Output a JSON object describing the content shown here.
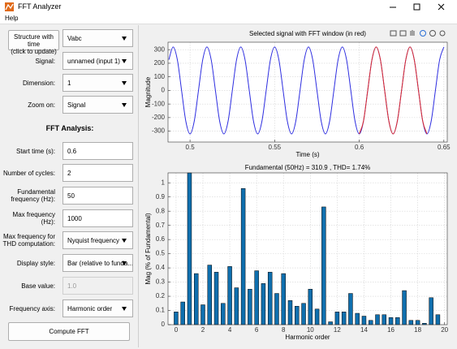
{
  "window": {
    "title": "FFT Analyzer",
    "menu": [
      "Help"
    ]
  },
  "panel": {
    "source_button": [
      "Structure with time",
      "(click to update)"
    ],
    "source_select": "Vabc",
    "fields": [
      {
        "label": "Signal:",
        "value": "unnamed (input 1)",
        "kind": "select"
      },
      {
        "label": "Dimension:",
        "value": "1",
        "kind": "select"
      },
      {
        "label": "Zoom on:",
        "value": "Signal",
        "kind": "select"
      },
      {
        "label": "Start time (s):",
        "value": "0.6",
        "kind": "edit"
      },
      {
        "label": "Number of cycles:",
        "value": "2",
        "kind": "edit"
      },
      {
        "label": "Fundamental frequency (Hz):",
        "value": "50",
        "kind": "edit"
      },
      {
        "label": "Max frequency (Hz):",
        "value": "1000",
        "kind": "edit"
      },
      {
        "label": "Max frequency for THD computation:",
        "value": "Nyquist frequency",
        "kind": "select"
      },
      {
        "label": "Display style:",
        "value": "Bar (relative to funda...",
        "kind": "select"
      },
      {
        "label": "Base value:",
        "value": "1.0",
        "kind": "edit",
        "enabled": false
      },
      {
        "label": "Frequency axis:",
        "value": "Harmonic order",
        "kind": "select"
      }
    ],
    "section_title": "FFT Analysis:",
    "compute_button": "Compute FFT"
  },
  "chart_data": [
    {
      "type": "line",
      "title": "Selected signal with FFT window (in red)",
      "xlabel": "Time (s)",
      "ylabel": "Magnitude",
      "xlim": [
        0.487,
        0.652
      ],
      "ylim": [
        -380,
        355
      ],
      "xticks": [
        0.5,
        0.55,
        0.6,
        0.65
      ],
      "yticks": [
        -300,
        -200,
        -100,
        0,
        100,
        200,
        300
      ],
      "grid": true,
      "series": [
        {
          "color": "#2d2de0",
          "x": [
            0.4875,
            0.49,
            0.4925,
            0.495,
            0.4975,
            0.5,
            0.5025,
            0.505,
            0.5075,
            0.51,
            0.5125,
            0.515,
            0.5175,
            0.52,
            0.5225,
            0.525,
            0.5275,
            0.53,
            0.5325,
            0.535,
            0.5375,
            0.54,
            0.5425,
            0.545,
            0.5475,
            0.55,
            0.5525,
            0.555,
            0.5575,
            0.56,
            0.5625,
            0.565,
            0.5675,
            0.57,
            0.5725,
            0.575,
            0.5775,
            0.58,
            0.5825,
            0.585,
            0.5875,
            0.59,
            0.5925,
            0.595,
            0.5975,
            0.6,
            0.6025,
            0.605,
            0.6075,
            0.61,
            0.6125,
            0.615,
            0.6175,
            0.62,
            0.6225,
            0.625,
            0.6275,
            0.63,
            0.6325,
            0.635,
            0.6375,
            0.64,
            0.6425,
            0.645,
            0.6475,
            0.65
          ],
          "values": [
            226,
            320,
            226,
            0,
            -226,
            -320,
            -226,
            0,
            226,
            320,
            226,
            0,
            -226,
            -320,
            -226,
            0,
            226,
            320,
            226,
            0,
            -226,
            -320,
            -226,
            0,
            226,
            320,
            226,
            0,
            -226,
            -320,
            -226,
            0,
            226,
            320,
            226,
            0,
            -226,
            -320,
            -226,
            0,
            226,
            320,
            226,
            0,
            -226,
            -320,
            -226,
            0,
            226,
            320,
            226,
            0,
            -226,
            -320,
            -226,
            0,
            226,
            320,
            226,
            0,
            -226,
            -320,
            -226,
            0,
            226,
            320
          ]
        },
        {
          "color": "#e02a2a",
          "x": [
            0.6,
            0.6025,
            0.605,
            0.6075,
            0.61,
            0.6125,
            0.615,
            0.6175,
            0.62,
            0.6225,
            0.625,
            0.6275,
            0.63,
            0.6325,
            0.635,
            0.6375,
            0.64
          ],
          "values": [
            -320,
            -226,
            0,
            226,
            320,
            226,
            0,
            -226,
            -320,
            -226,
            0,
            226,
            320,
            226,
            0,
            -226,
            -320
          ]
        }
      ]
    },
    {
      "type": "bar",
      "title": "Fundamental (50Hz) = 310.9 , THD= 1.74%",
      "xlabel": "Harmonic order",
      "ylabel": "Mag (% of Fundamental)",
      "xlim": [
        -0.6,
        20.2
      ],
      "ylim": [
        0,
        1.07
      ],
      "xticks": [
        0,
        2,
        4,
        6,
        8,
        10,
        12,
        14,
        16,
        18,
        20
      ],
      "yticks": [
        0,
        0.1,
        0.2,
        0.3,
        0.4,
        0.5,
        0.6,
        0.7,
        0.8,
        0.9,
        1
      ],
      "grid": true,
      "color": "#0f6fae",
      "x": [
        0,
        0.5,
        1,
        1.5,
        2,
        2.5,
        3,
        3.5,
        4,
        4.5,
        5,
        5.5,
        6,
        6.5,
        7,
        7.5,
        8,
        8.5,
        9,
        9.5,
        10,
        10.5,
        11,
        11.5,
        12,
        12.5,
        13,
        13.5,
        14,
        14.5,
        15,
        15.5,
        16,
        16.5,
        17,
        17.5,
        18,
        18.5,
        19,
        19.5
      ],
      "values": [
        0.09,
        0.16,
        1.07,
        0.36,
        0.14,
        0.42,
        0.37,
        0.15,
        0.41,
        0.26,
        0.96,
        0.25,
        0.38,
        0.29,
        0.37,
        0.22,
        0.36,
        0.17,
        0.13,
        0.15,
        0.25,
        0.11,
        0.83,
        0.02,
        0.09,
        0.09,
        0.22,
        0.08,
        0.06,
        0.03,
        0.07,
        0.07,
        0.05,
        0.05,
        0.24,
        0.03,
        0.03,
        0.01,
        0.19,
        0.07
      ]
    }
  ]
}
